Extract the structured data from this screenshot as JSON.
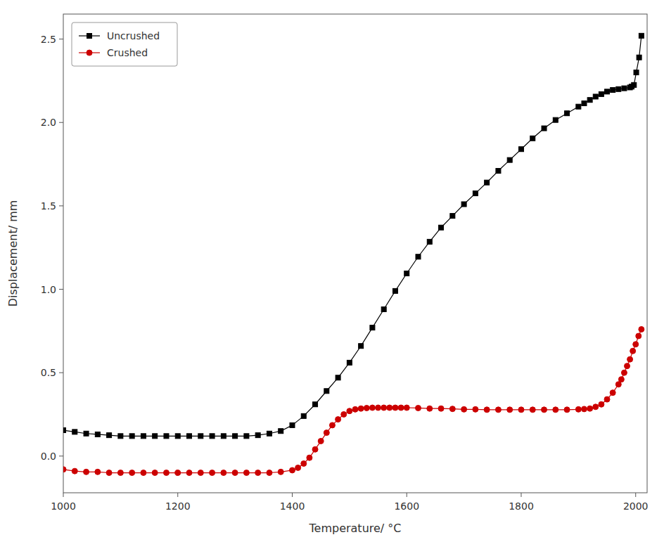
{
  "chart_data": {
    "type": "line",
    "xlabel": "Temperature/ °C",
    "ylabel": "Displacement/ mm",
    "xlim": [
      1000,
      2020
    ],
    "ylim": [
      -0.22,
      2.65
    ],
    "xticks": [
      1000,
      1200,
      1400,
      1600,
      1800,
      2000
    ],
    "yticks": [
      {
        "value": 0.0,
        "label": "0.0"
      },
      0.5,
      {
        "value": 1.0,
        "label": "1.0"
      },
      1.5,
      {
        "value": 2.0,
        "label": "2.0"
      },
      2.5
    ],
    "grid": false,
    "legend": "upper left",
    "series": [
      {
        "name": "Uncrushed",
        "color": "#000000",
        "marker": "square",
        "x": [
          1000,
          1020,
          1040,
          1060,
          1080,
          1100,
          1120,
          1140,
          1160,
          1180,
          1200,
          1220,
          1240,
          1260,
          1280,
          1300,
          1320,
          1340,
          1360,
          1380,
          1400,
          1420,
          1440,
          1460,
          1480,
          1500,
          1520,
          1540,
          1560,
          1580,
          1600,
          1620,
          1640,
          1660,
          1680,
          1700,
          1720,
          1740,
          1760,
          1780,
          1800,
          1820,
          1840,
          1860,
          1880,
          1900,
          1910,
          1920,
          1930,
          1940,
          1950,
          1960,
          1970,
          1980,
          1990,
          1993,
          1997,
          2001,
          2006,
          2010
        ],
        "values": [
          0.155,
          0.145,
          0.135,
          0.13,
          0.125,
          0.12,
          0.12,
          0.12,
          0.12,
          0.12,
          0.12,
          0.12,
          0.12,
          0.12,
          0.12,
          0.12,
          0.12,
          0.125,
          0.135,
          0.15,
          0.185,
          0.24,
          0.31,
          0.39,
          0.47,
          0.56,
          0.66,
          0.77,
          0.88,
          0.99,
          1.095,
          1.195,
          1.285,
          1.37,
          1.44,
          1.51,
          1.575,
          1.64,
          1.71,
          1.775,
          1.84,
          1.905,
          1.965,
          2.015,
          2.055,
          2.095,
          2.115,
          2.135,
          2.155,
          2.17,
          2.185,
          2.195,
          2.2,
          2.205,
          2.21,
          2.215,
          2.225,
          2.3,
          2.39,
          2.52
        ]
      },
      {
        "name": "Crushed",
        "color": "#cc0000",
        "marker": "circle",
        "x": [
          1000,
          1020,
          1040,
          1060,
          1080,
          1100,
          1120,
          1140,
          1160,
          1180,
          1200,
          1220,
          1240,
          1260,
          1280,
          1300,
          1320,
          1340,
          1360,
          1380,
          1400,
          1410,
          1420,
          1430,
          1440,
          1450,
          1460,
          1470,
          1480,
          1490,
          1500,
          1510,
          1520,
          1530,
          1540,
          1550,
          1560,
          1570,
          1580,
          1590,
          1600,
          1620,
          1640,
          1660,
          1680,
          1700,
          1720,
          1740,
          1760,
          1780,
          1800,
          1820,
          1840,
          1860,
          1880,
          1900,
          1910,
          1920,
          1930,
          1940,
          1950,
          1960,
          1970,
          1975,
          1980,
          1985,
          1990,
          1995,
          2000,
          2005,
          2010
        ],
        "values": [
          -0.08,
          -0.09,
          -0.095,
          -0.095,
          -0.1,
          -0.1,
          -0.1,
          -0.1,
          -0.1,
          -0.1,
          -0.1,
          -0.1,
          -0.1,
          -0.1,
          -0.1,
          -0.1,
          -0.1,
          -0.1,
          -0.1,
          -0.095,
          -0.085,
          -0.07,
          -0.045,
          -0.01,
          0.04,
          0.09,
          0.14,
          0.185,
          0.22,
          0.25,
          0.27,
          0.28,
          0.285,
          0.288,
          0.29,
          0.29,
          0.29,
          0.29,
          0.29,
          0.29,
          0.29,
          0.288,
          0.285,
          0.285,
          0.283,
          0.28,
          0.28,
          0.278,
          0.278,
          0.278,
          0.278,
          0.278,
          0.278,
          0.278,
          0.278,
          0.28,
          0.282,
          0.285,
          0.295,
          0.31,
          0.34,
          0.38,
          0.43,
          0.46,
          0.5,
          0.54,
          0.58,
          0.63,
          0.67,
          0.72,
          0.76
        ]
      }
    ]
  }
}
